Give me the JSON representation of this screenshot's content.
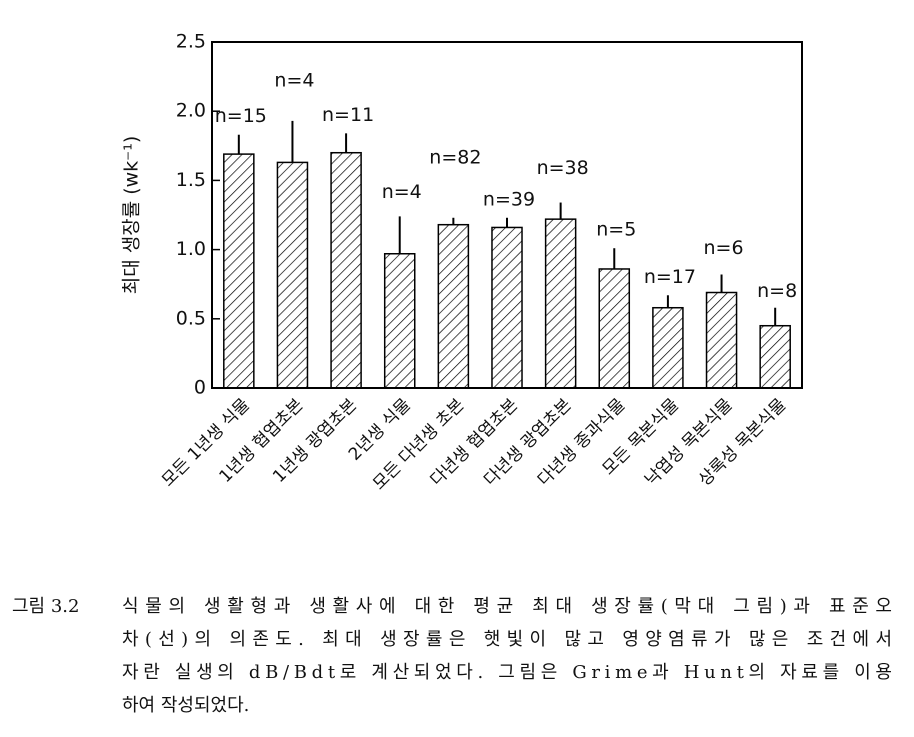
{
  "chart_data": {
    "type": "bar",
    "y_label": "최대 생장률 (wk⁻¹)",
    "categories": [
      "모든 1년생 식물",
      "1년생 협엽초본",
      "1년생 광엽초본",
      "2년생 식물",
      "모든 다년생 초본",
      "다년생 협엽초본",
      "다년생 광엽초본",
      "다년생 종과식물",
      "모든 목본식물",
      "낙엽성 목본식물",
      "상록성 목본식물"
    ],
    "values": [
      1.69,
      1.63,
      1.7,
      0.97,
      1.18,
      1.16,
      1.22,
      0.86,
      0.58,
      0.69,
      0.45
    ],
    "errors": [
      0.14,
      0.3,
      0.14,
      0.27,
      0.05,
      0.07,
      0.12,
      0.15,
      0.09,
      0.13,
      0.13
    ],
    "annotations": [
      "n=15",
      "n=4",
      "n=11",
      "n=4",
      "n=82",
      "n=39",
      "n=38",
      "n=5",
      "n=17",
      "n=6",
      "n=8"
    ],
    "color": "#000000",
    "hatch": true,
    "ylim": [
      0,
      2.5
    ],
    "yticks": [
      0,
      {
        "value": 0.5,
        "label": "0.5"
      },
      {
        "value": 1,
        "label": "1.0"
      },
      {
        "value": 1.5,
        "label": "1.5"
      },
      {
        "value": 2,
        "label": "2.0"
      },
      {
        "value": 2.5,
        "label": "2.5"
      }
    ],
    "grid": false
  },
  "caption": {
    "label": "그림 3.2",
    "lines": [
      "식물의 생활형과 생활사에 대한 평균 최대 생장률(막대 그림)과 표준오",
      "차(선)의 의존도. 최대 생장률은 햇빛이 많고 영양염류가 많은 조건에서",
      "자란 실생의 dB/Bdt로 계산되었다. 그림은 Grime과 Hunt의 자료를 이용",
      "하여 작성되었다."
    ]
  }
}
